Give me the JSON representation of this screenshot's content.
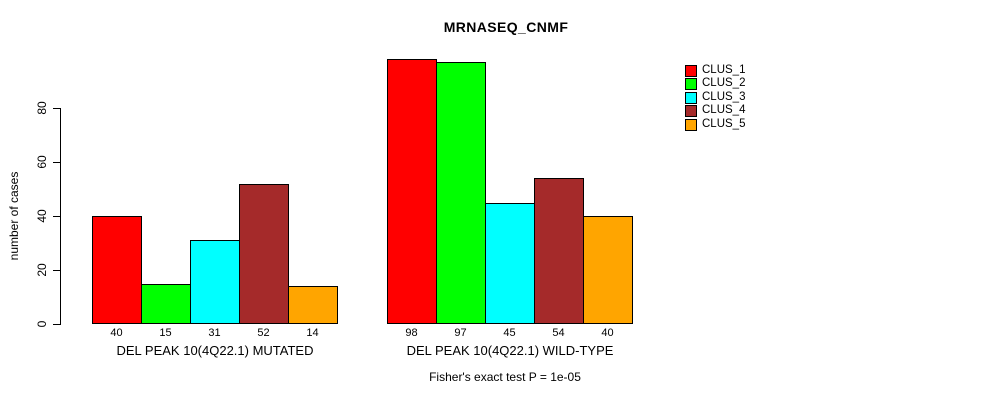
{
  "chart_data": {
    "type": "bar",
    "title": "MRNASEQ_CNMF",
    "ylabel": "number of cases",
    "xlabel": "",
    "yticks": [
      0,
      20,
      40,
      60,
      80
    ],
    "ylim": [
      0,
      100
    ],
    "grid": false,
    "legend_position": "right",
    "legend": [
      "CLUS_1",
      "CLUS_2",
      "CLUS_3",
      "CLUS_4",
      "CLUS_5"
    ],
    "colors": [
      "#FF0000",
      "#00FF00",
      "#00FFFF",
      "#A52A2A",
      "#FFA500"
    ],
    "categories": [
      "DEL PEAK 10(4Q22.1) MUTATED",
      "DEL PEAK 10(4Q22.1) WILD-TYPE"
    ],
    "groups": [
      {
        "label": "DEL PEAK 10(4Q22.1) MUTATED",
        "values": [
          40,
          15,
          31,
          52,
          14
        ]
      },
      {
        "label": "DEL PEAK 10(4Q22.1) WILD-TYPE",
        "values": [
          98,
          97,
          45,
          54,
          40
        ]
      }
    ],
    "series": [
      {
        "name": "CLUS_1",
        "values": [
          40,
          98
        ]
      },
      {
        "name": "CLUS_2",
        "values": [
          15,
          97
        ]
      },
      {
        "name": "CLUS_3",
        "values": [
          31,
          45
        ]
      },
      {
        "name": "CLUS_4",
        "values": [
          52,
          54
        ]
      },
      {
        "name": "CLUS_5",
        "values": [
          14,
          40
        ]
      }
    ],
    "footnote": "Fisher's exact test P = 1e-05"
  }
}
